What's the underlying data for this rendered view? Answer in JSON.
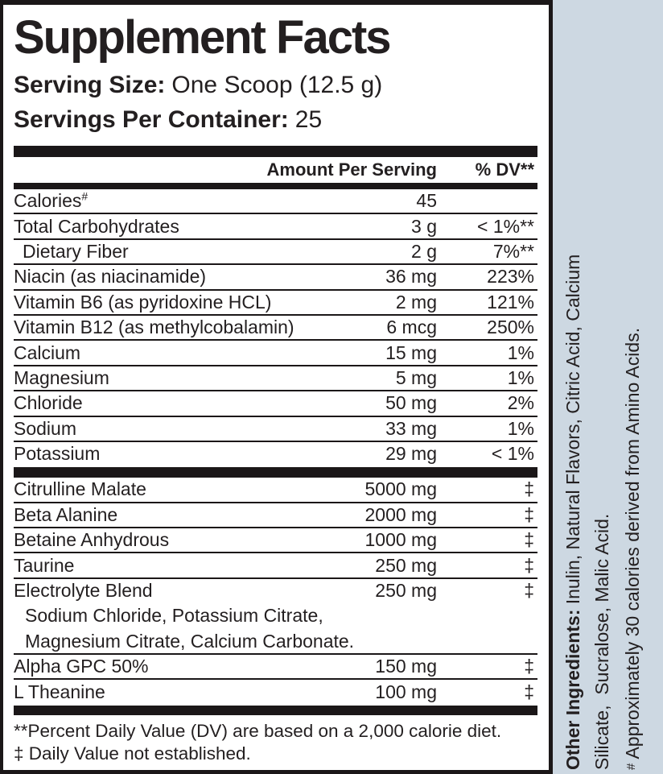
{
  "title": "Supplement Facts",
  "serving_size": {
    "label": "Serving Size:",
    "value": "One Scoop (12.5 g)"
  },
  "servings_per_container": {
    "label": "Servings Per Container:",
    "value": "25"
  },
  "table": {
    "headers": {
      "amount": "Amount Per Serving",
      "dv": "% DV**"
    },
    "sections": [
      {
        "rows": [
          {
            "name": "Calories",
            "sup": "#",
            "amount": "45",
            "dv": ""
          },
          {
            "name": "Total Carbohydrates",
            "amount": "3 g",
            "dv": "< 1%**"
          },
          {
            "name": "Dietary Fiber",
            "indent": true,
            "amount": "2 g",
            "dv": "7%**"
          },
          {
            "name": "Niacin (as niacinamide)",
            "amount": "36 mg",
            "dv": "223%"
          },
          {
            "name": "Vitamin B6 (as pyridoxine HCL)",
            "amount": "2 mg",
            "dv": "121%"
          },
          {
            "name": "Vitamin B12 (as methylcobalamin)",
            "amount": "6 mcg",
            "dv": "250%"
          },
          {
            "name": "Calcium",
            "amount": "15 mg",
            "dv": "1%"
          },
          {
            "name": "Magnesium",
            "amount": "5 mg",
            "dv": "1%"
          },
          {
            "name": "Chloride",
            "amount": "50 mg",
            "dv": "2%"
          },
          {
            "name": "Sodium",
            "amount": "33 mg",
            "dv": "1%"
          },
          {
            "name": "Potassium",
            "amount": "29 mg",
            "dv": "< 1%"
          }
        ]
      },
      {
        "rows": [
          {
            "name": "Citrulline Malate",
            "amount": "5000 mg",
            "dv": "‡"
          },
          {
            "name": "Beta Alanine",
            "amount": "2000 mg",
            "dv": "‡"
          },
          {
            "name": "Betaine Anhydrous",
            "amount": "1000 mg",
            "dv": "‡"
          },
          {
            "name": "Taurine",
            "amount": "250 mg",
            "dv": "‡"
          },
          {
            "name": "Electrolyte Blend",
            "amount": "250 mg",
            "dv": "‡",
            "sub": [
              "Sodium Chloride, Potassium Citrate,",
              "Magnesium Citrate, Calcium Carbonate."
            ]
          },
          {
            "name": "Alpha GPC 50%",
            "amount": "150 mg",
            "dv": "‡"
          },
          {
            "name": "L Theanine",
            "amount": "100 mg",
            "dv": "‡"
          }
        ]
      }
    ]
  },
  "footnotes": [
    "**Percent Daily Value (DV) are based on a 2,000 calorie diet.",
    "‡ Daily Value not established."
  ],
  "sidebar": {
    "other_ingredients_label": "Other Ingredients:",
    "other_ingredients_rest": " Inulin, Natural Flavors, Citric Acid, Calcium",
    "line2": "Silicate,  Sucralose, Malic Acid.",
    "footnote_marker": "#",
    "footnote_rest": " Approximately 30 calories derived from Amino Acids.",
    "background_color": "#cdd8e2"
  },
  "colors": {
    "text": "#231f20",
    "bar": "#1b1718",
    "panel_bg": "#ffffff",
    "sidebar_bg": "#cdd8e2"
  }
}
